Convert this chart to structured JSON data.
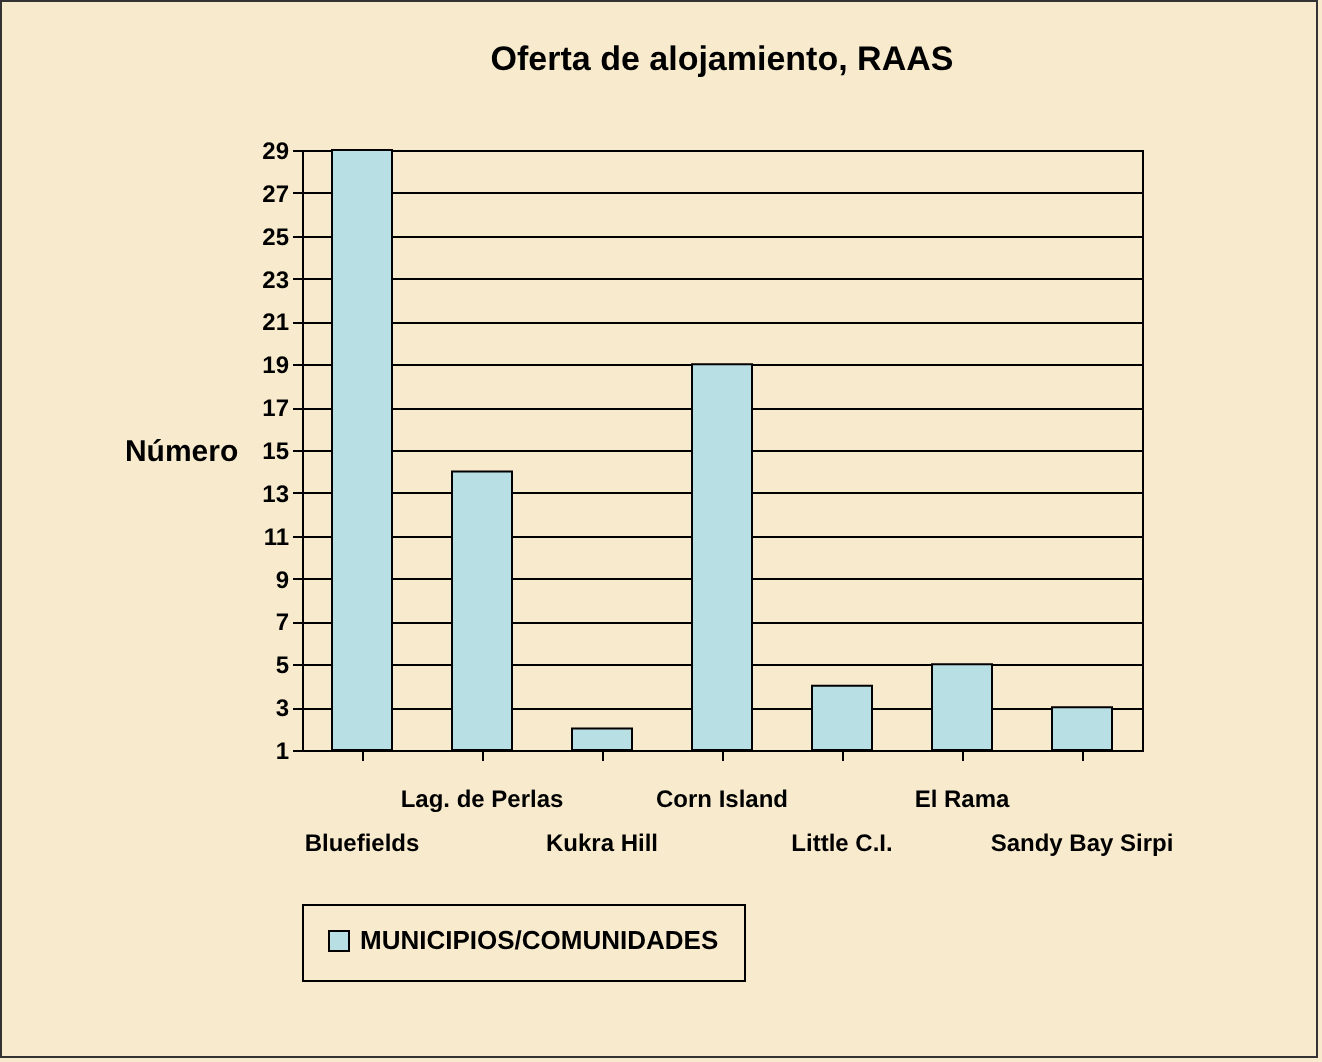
{
  "chart_data": {
    "type": "bar",
    "title": "Oferta de alojamiento, RAAS",
    "ylabel": "Número",
    "categories": [
      "Bluefields",
      "Lag. de Perlas",
      "Kukra Hill",
      "Corn Island",
      "Little C.I.",
      "El Rama",
      "Sandy Bay Sirpi"
    ],
    "series": [
      {
        "name": "MUNICIPIOS/COMUNIDADES",
        "color": "#b8e0e4",
        "values": [
          29,
          14,
          2,
          19,
          4,
          5,
          3
        ]
      }
    ],
    "ylim": [
      1,
      29
    ],
    "yticks": [
      1,
      3,
      5,
      7,
      9,
      11,
      13,
      15,
      17,
      19,
      21,
      23,
      25,
      27,
      29
    ],
    "grid": "y",
    "legend": "bottom"
  }
}
